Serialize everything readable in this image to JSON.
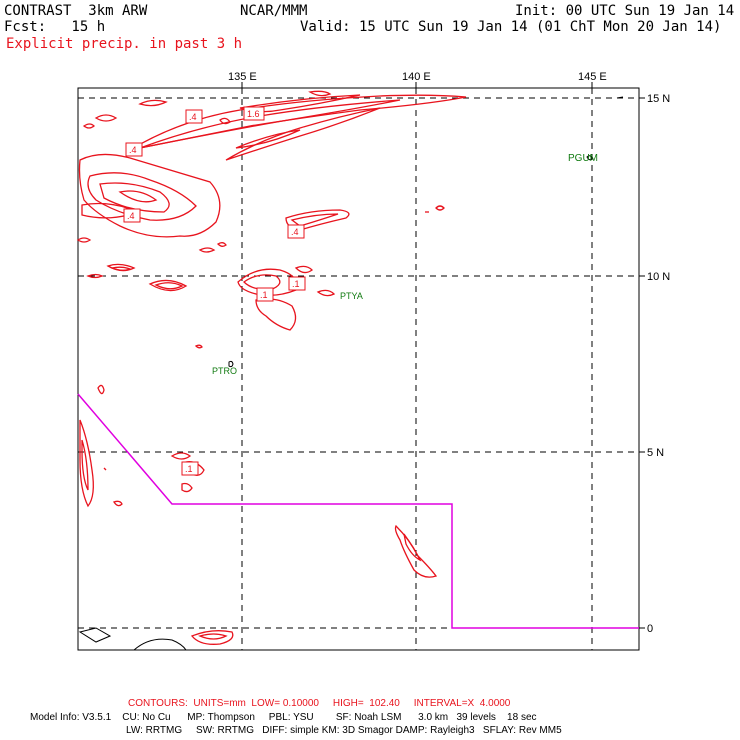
{
  "header": {
    "model": "CONTRAST  3km ARW",
    "center": "NCAR/MMM",
    "init": "Init: 00 UTC Sun 19 Jan 14",
    "fcst": "Fcst:   15 h",
    "valid": "Valid: 15 UTC Sun 19 Jan 14 (01 ChT Mon 20 Jan 14)",
    "field": "Explicit precip. in past 3 h"
  },
  "map": {
    "lon_labels": [
      "135 E",
      "140 E",
      "145 E"
    ],
    "lat_labels": [
      "15 N",
      "10 N",
      "5 N",
      "0"
    ],
    "stations": [
      {
        "id": "PGUM"
      },
      {
        "id": "PTYA"
      },
      {
        "id": "PTRO"
      }
    ],
    "contour_labels": [
      ".4",
      "1.6",
      ".4",
      ".4",
      ".4",
      ".1",
      ".1",
      ".1"
    ],
    "colors": {
      "precip": "#e8141e",
      "boundary": "#e000e0",
      "station": "#107a10",
      "grid": "#000000"
    }
  },
  "footer": {
    "contours": "CONTOURS:  UNITS=mm  LOW= 0.10000     HIGH=  102.40     INTERVAL=X  4.0000",
    "model_info": "Model Info: V3.5.1    CU: No Cu      MP: Thompson     PBL: YSU        SF: Noah LSM      3.0 km   39 levels    18 sec",
    "model_info2": "LW: RRTMG     SW: RRTMG   DIFF: simple KM: 3D Smagor DAMP: Rayleigh3   SFLAY: Rev MM5"
  }
}
